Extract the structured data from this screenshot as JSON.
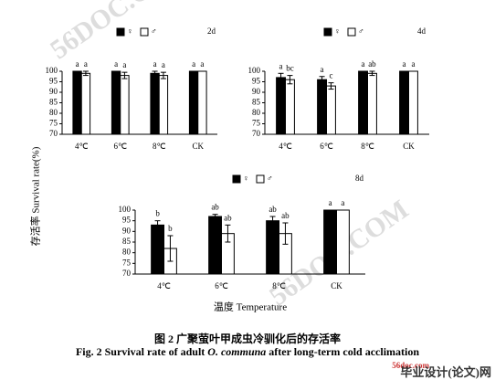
{
  "chart_data": [
    {
      "type": "bar",
      "title": "2d",
      "categories": [
        "4℃",
        "6℃",
        "8℃",
        "CK"
      ],
      "ylim": [
        70,
        100
      ],
      "yticks": [
        70,
        75,
        80,
        85,
        90,
        95,
        100
      ],
      "series": [
        {
          "name": "♀",
          "color": "#000000",
          "values": [
            100,
            100,
            99,
            100
          ],
          "errors": [
            0,
            0,
            1,
            0
          ],
          "letters": [
            "a",
            "a",
            "a",
            "a"
          ]
        },
        {
          "name": "♂",
          "color": "#ffffff",
          "values": [
            99,
            98,
            98,
            100
          ],
          "errors": [
            1,
            1.5,
            1.5,
            0
          ],
          "letters": [
            "a",
            "a",
            "a",
            "a"
          ]
        }
      ]
    },
    {
      "type": "bar",
      "title": "4d",
      "categories": [
        "4℃",
        "6℃",
        "8℃",
        "CK"
      ],
      "ylim": [
        70,
        100
      ],
      "yticks": [
        70,
        75,
        80,
        85,
        90,
        95,
        100
      ],
      "series": [
        {
          "name": "♀",
          "color": "#000000",
          "values": [
            97,
            96,
            100,
            100
          ],
          "errors": [
            2,
            1.5,
            0,
            0
          ],
          "letters": [
            "a",
            "a",
            "a",
            "a"
          ]
        },
        {
          "name": "♂",
          "color": "#ffffff",
          "values": [
            96,
            93,
            99,
            100
          ],
          "errors": [
            2,
            1.5,
            1,
            0
          ],
          "letters": [
            "bc",
            "c",
            "ab",
            "a"
          ]
        }
      ]
    },
    {
      "type": "bar",
      "title": "8d",
      "categories": [
        "4℃",
        "6℃",
        "8℃",
        "CK"
      ],
      "ylim": [
        70,
        100
      ],
      "yticks": [
        70,
        75,
        80,
        85,
        90,
        95,
        100
      ],
      "series": [
        {
          "name": "♀",
          "color": "#000000",
          "values": [
            93,
            97,
            95,
            100
          ],
          "errors": [
            2,
            1,
            2,
            0
          ],
          "letters": [
            "b",
            "ab",
            "ab",
            "a"
          ]
        },
        {
          "name": "♂",
          "color": "#ffffff",
          "values": [
            82,
            89,
            89,
            100
          ],
          "errors": [
            6,
            4,
            5,
            0
          ],
          "letters": [
            "b",
            "ab",
            "ab",
            "a"
          ]
        }
      ]
    }
  ],
  "figure": {
    "ylabel": "存活率  Survival rate(%)",
    "xlabel": "温度  Temperature",
    "caption_cn": "图 2  广聚萤叶甲成虫冷驯化后的存活率",
    "caption_en": [
      "Fig. 2 Survival rate of adult ",
      "O. communa",
      " after long-term cold acclimation"
    ],
    "watermark": "56DOC.COM",
    "logo_site": "56doc.com",
    "logo_text": "毕业设计(论文)网"
  }
}
